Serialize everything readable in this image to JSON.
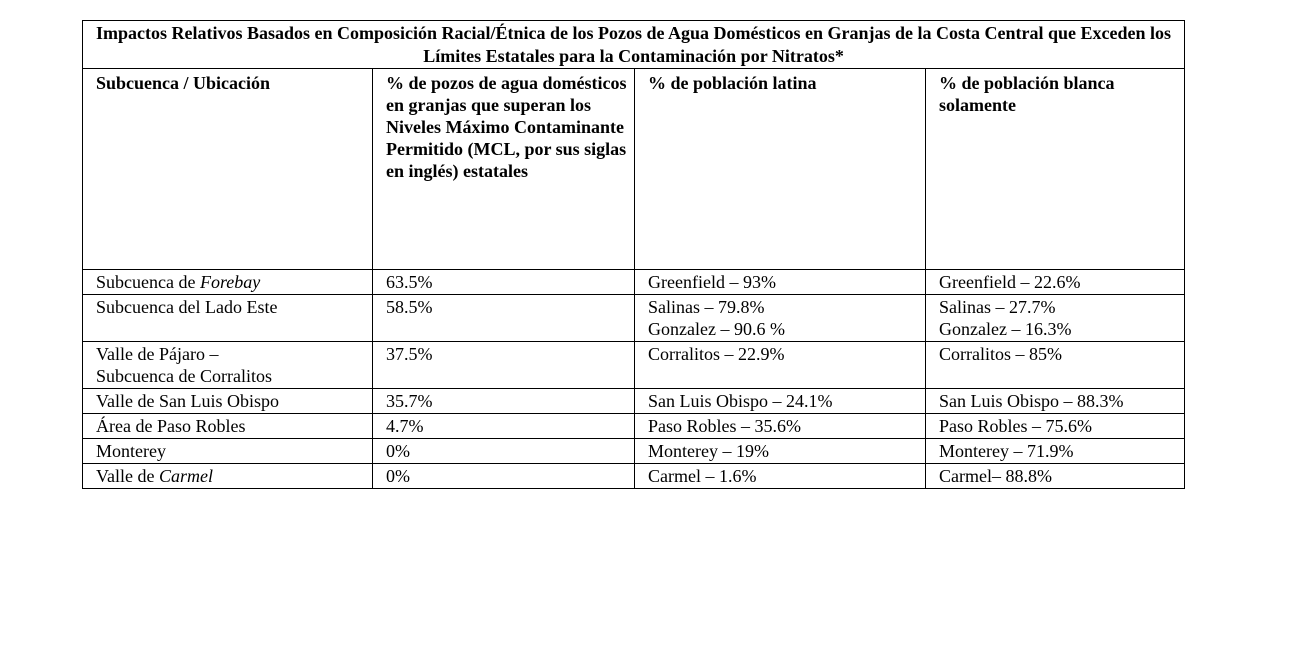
{
  "title": "Impactos Relativos Basados en Composición Racial/Étnica de los Pozos de Agua Domésticos en Granjas de la Costa Central que Exceden los Límites Estatales para la Contaminación por Nitratos*",
  "headers": [
    "Subcuenca / Ubicación",
    "% de pozos de agua domésticos en granjas que superan los Niveles Máximo Contaminante Permitido (MCL, por sus siglas en inglés) estatales",
    "% de población latina",
    "% de población blanca solamente"
  ],
  "rows": [
    {
      "loc_a": "Subcuenca de ",
      "loc_em": "Forebay",
      "wells": "63.5%",
      "latina": [
        "Greenfield – 93%"
      ],
      "blanca": [
        "Greenfield – 22.6%"
      ]
    },
    {
      "loc_a": "Subcuenca del Lado Este",
      "wells": "58.5%",
      "latina": [
        "Salinas – 79.8%",
        "Gonzalez – 90.6 %"
      ],
      "blanca": [
        "Salinas – 27.7%",
        "Gonzalez – 16.3%"
      ]
    },
    {
      "loc_a": "Valle de Pájaro –",
      "loc_b": "Subcuenca de Corralitos",
      "wells": "37.5%",
      "latina": [
        "Corralitos – 22.9%"
      ],
      "blanca": [
        "Corralitos – 85%"
      ]
    },
    {
      "loc_a": "Valle de San Luis Obispo",
      "wells": "35.7%",
      "latina": [
        "San Luis Obispo – 24.1%"
      ],
      "blanca": [
        "San Luis Obispo – 88.3%"
      ]
    },
    {
      "loc_a": "Área de Paso Robles",
      "wells": "4.7%",
      "latina": [
        "Paso Robles – 35.6%"
      ],
      "blanca": [
        "Paso Robles – 75.6%"
      ]
    },
    {
      "loc_a": "Monterey",
      "wells": "0%",
      "latina": [
        "Monterey – 19%"
      ],
      "blanca": [
        "Monterey – 71.9%"
      ]
    },
    {
      "loc_a": "Valle de ",
      "loc_em": "Carmel",
      "wells": "0%",
      "latina": [
        "Carmel – 1.6%"
      ],
      "blanca": [
        "Carmel– 88.8%"
      ]
    }
  ]
}
